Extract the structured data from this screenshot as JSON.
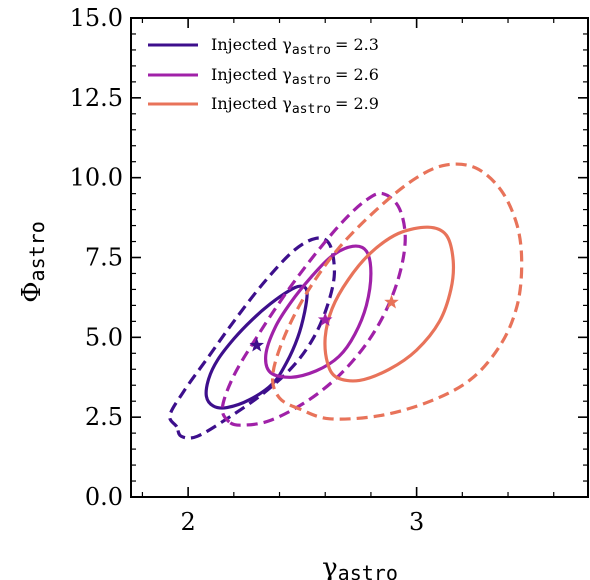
{
  "chart_data": {
    "type": "contour",
    "xlabel": "γ",
    "xlabel_sub": "astro",
    "ylabel": "Φ",
    "ylabel_sub": "astro",
    "xlim": [
      1.75,
      3.75
    ],
    "ylim": [
      0.0,
      15.0
    ],
    "x_ticks": [
      2,
      3
    ],
    "x_tick_labels": [
      "2",
      "3"
    ],
    "x_minor_ticks": [
      1.8,
      2.2,
      2.4,
      2.6,
      2.8,
      3.2,
      3.4,
      3.6
    ],
    "y_ticks": [
      0.0,
      2.5,
      5.0,
      7.5,
      10.0,
      12.5,
      15.0
    ],
    "y_tick_labels": [
      "0.0",
      "2.5",
      "5.0",
      "7.5",
      "10.0",
      "12.5",
      "15.0"
    ],
    "grid": false,
    "legend_position": "top-left",
    "series": [
      {
        "name": "Injected γ",
        "name_sub": "astro",
        "name_value": "= 2.3",
        "color": "#3d0f8c",
        "marker": {
          "x": 2.3,
          "y": 4.75
        },
        "inner_contour": [
          [
            2.11,
            2.85
          ],
          [
            2.08,
            3.15
          ],
          [
            2.09,
            3.7
          ],
          [
            2.13,
            4.3
          ],
          [
            2.2,
            4.95
          ],
          [
            2.28,
            5.55
          ],
          [
            2.36,
            6.05
          ],
          [
            2.44,
            6.45
          ],
          [
            2.49,
            6.6
          ],
          [
            2.52,
            6.45
          ],
          [
            2.51,
            5.8
          ],
          [
            2.48,
            5.0
          ],
          [
            2.43,
            4.2
          ],
          [
            2.37,
            3.55
          ],
          [
            2.27,
            3.05
          ],
          [
            2.17,
            2.8
          ],
          [
            2.11,
            2.85
          ]
        ],
        "outer_contour": [
          [
            1.95,
            2.2
          ],
          [
            1.92,
            2.55
          ],
          [
            1.98,
            3.3
          ],
          [
            2.08,
            4.3
          ],
          [
            2.2,
            5.5
          ],
          [
            2.33,
            6.7
          ],
          [
            2.46,
            7.7
          ],
          [
            2.56,
            8.1
          ],
          [
            2.62,
            7.9
          ],
          [
            2.64,
            7.0
          ],
          [
            2.61,
            6.0
          ],
          [
            2.55,
            5.0
          ],
          [
            2.46,
            4.1
          ],
          [
            2.33,
            3.25
          ],
          [
            2.18,
            2.5
          ],
          [
            2.04,
            1.9
          ],
          [
            1.97,
            1.9
          ],
          [
            1.95,
            2.2
          ]
        ]
      },
      {
        "name": "Injected γ",
        "name_sub": "astro",
        "name_value": "= 2.6",
        "color": "#a021a8",
        "marker": {
          "x": 2.6,
          "y": 5.55
        },
        "inner_contour": [
          [
            2.36,
            3.9
          ],
          [
            2.34,
            4.45
          ],
          [
            2.38,
            5.3
          ],
          [
            2.45,
            6.1
          ],
          [
            2.54,
            6.9
          ],
          [
            2.63,
            7.55
          ],
          [
            2.72,
            7.85
          ],
          [
            2.78,
            7.7
          ],
          [
            2.8,
            7.0
          ],
          [
            2.78,
            6.0
          ],
          [
            2.73,
            5.1
          ],
          [
            2.66,
            4.4
          ],
          [
            2.56,
            3.95
          ],
          [
            2.45,
            3.75
          ],
          [
            2.36,
            3.9
          ]
        ],
        "outer_contour": [
          [
            2.18,
            2.35
          ],
          [
            2.15,
            2.8
          ],
          [
            2.2,
            3.8
          ],
          [
            2.3,
            5.0
          ],
          [
            2.42,
            6.3
          ],
          [
            2.55,
            7.55
          ],
          [
            2.68,
            8.65
          ],
          [
            2.78,
            9.3
          ],
          [
            2.85,
            9.5
          ],
          [
            2.92,
            9.1
          ],
          [
            2.95,
            8.2
          ],
          [
            2.93,
            7.1
          ],
          [
            2.87,
            5.9
          ],
          [
            2.78,
            4.8
          ],
          [
            2.66,
            3.8
          ],
          [
            2.52,
            3.0
          ],
          [
            2.36,
            2.4
          ],
          [
            2.24,
            2.25
          ],
          [
            2.18,
            2.35
          ]
        ]
      },
      {
        "name": "Injected γ",
        "name_sub": "astro",
        "name_value": "= 2.9",
        "color": "#e8735a",
        "marker": {
          "x": 2.89,
          "y": 6.1
        },
        "inner_contour": [
          [
            2.65,
            3.75
          ],
          [
            2.61,
            4.2
          ],
          [
            2.6,
            5.0
          ],
          [
            2.63,
            5.9
          ],
          [
            2.7,
            6.8
          ],
          [
            2.8,
            7.65
          ],
          [
            2.92,
            8.25
          ],
          [
            3.05,
            8.45
          ],
          [
            3.13,
            8.2
          ],
          [
            3.16,
            7.4
          ],
          [
            3.15,
            6.5
          ],
          [
            3.1,
            5.5
          ],
          [
            3.0,
            4.6
          ],
          [
            2.88,
            4.0
          ],
          [
            2.75,
            3.65
          ],
          [
            2.65,
            3.75
          ]
        ],
        "outer_contour": [
          [
            2.49,
            2.75
          ],
          [
            2.4,
            3.1
          ],
          [
            2.37,
            3.8
          ],
          [
            2.42,
            5.0
          ],
          [
            2.52,
            6.4
          ],
          [
            2.66,
            7.8
          ],
          [
            2.84,
            9.1
          ],
          [
            3.0,
            10.0
          ],
          [
            3.13,
            10.4
          ],
          [
            3.26,
            10.3
          ],
          [
            3.37,
            9.6
          ],
          [
            3.44,
            8.5
          ],
          [
            3.46,
            7.3
          ],
          [
            3.44,
            6.0
          ],
          [
            3.37,
            4.8
          ],
          [
            3.24,
            3.7
          ],
          [
            3.06,
            3.0
          ],
          [
            2.84,
            2.55
          ],
          [
            2.62,
            2.45
          ],
          [
            2.49,
            2.75
          ]
        ]
      }
    ]
  }
}
